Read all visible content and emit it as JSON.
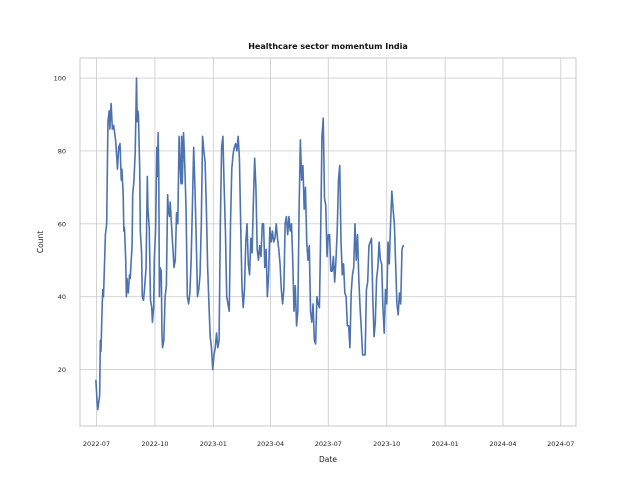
{
  "chart_data": {
    "type": "line",
    "title": "Healthcare sector momentum India",
    "xlabel": "Date",
    "ylabel": "Count",
    "xlim": [
      "2022-06-05",
      "2024-07-25"
    ],
    "ylim": [
      4.5,
      105.5
    ],
    "grid": true,
    "legend": "none",
    "x_ticks": [
      {
        "value": "2022-07-01",
        "label": "2022-07"
      },
      {
        "value": "2022-10-01",
        "label": "2022-10"
      },
      {
        "value": "2023-01-01",
        "label": "2023-01"
      },
      {
        "value": "2023-04-01",
        "label": "2023-04"
      },
      {
        "value": "2023-07-01",
        "label": "2023-07"
      },
      {
        "value": "2023-10-01",
        "label": "2023-10"
      },
      {
        "value": "2024-01-01",
        "label": "2024-01"
      },
      {
        "value": "2024-04-01",
        "label": "2024-04"
      },
      {
        "value": "2024-07-01",
        "label": "2024-07"
      }
    ],
    "y_ticks": [
      {
        "value": 20,
        "label": "20"
      },
      {
        "value": 40,
        "label": "40"
      },
      {
        "value": 60,
        "label": "60"
      },
      {
        "value": 80,
        "label": "80"
      },
      {
        "value": 100,
        "label": "100"
      }
    ],
    "series": [
      {
        "color": "#4c72b0",
        "points": [
          [
            "2022-06-30",
            17
          ],
          [
            "2022-07-02",
            11
          ],
          [
            "2022-07-03",
            9
          ],
          [
            "2022-07-06",
            13
          ],
          [
            "2022-07-07",
            28
          ],
          [
            "2022-07-08",
            25
          ],
          [
            "2022-07-10",
            38
          ],
          [
            "2022-07-11",
            42
          ],
          [
            "2022-07-12",
            40
          ],
          [
            "2022-07-15",
            57
          ],
          [
            "2022-07-17",
            60
          ],
          [
            "2022-07-19",
            88
          ],
          [
            "2022-07-21",
            91
          ],
          [
            "2022-07-22",
            86
          ],
          [
            "2022-07-24",
            93
          ],
          [
            "2022-07-26",
            86
          ],
          [
            "2022-07-28",
            87
          ],
          [
            "2022-07-31",
            83
          ],
          [
            "2022-08-02",
            78
          ],
          [
            "2022-08-03",
            75
          ],
          [
            "2022-08-05",
            81
          ],
          [
            "2022-08-07",
            82
          ],
          [
            "2022-08-09",
            72
          ],
          [
            "2022-08-10",
            75
          ],
          [
            "2022-08-12",
            68
          ],
          [
            "2022-08-13",
            58
          ],
          [
            "2022-08-14",
            59
          ],
          [
            "2022-08-16",
            50
          ],
          [
            "2022-08-17",
            40
          ],
          [
            "2022-08-18",
            45
          ],
          [
            "2022-08-20",
            41
          ],
          [
            "2022-08-22",
            46
          ],
          [
            "2022-08-23",
            45
          ],
          [
            "2022-08-26",
            54
          ],
          [
            "2022-08-27",
            68
          ],
          [
            "2022-08-29",
            72
          ],
          [
            "2022-08-31",
            80
          ],
          [
            "2022-09-02",
            100
          ],
          [
            "2022-09-03",
            88
          ],
          [
            "2022-09-04",
            91
          ],
          [
            "2022-09-05",
            90
          ],
          [
            "2022-09-07",
            75
          ],
          [
            "2022-09-08",
            58
          ],
          [
            "2022-09-10",
            52
          ],
          [
            "2022-09-11",
            40
          ],
          [
            "2022-09-13",
            39
          ],
          [
            "2022-09-15",
            43
          ],
          [
            "2022-09-17",
            48
          ],
          [
            "2022-09-19",
            73
          ],
          [
            "2022-09-20",
            64
          ],
          [
            "2022-09-22",
            59
          ],
          [
            "2022-09-24",
            39
          ],
          [
            "2022-09-26",
            37
          ],
          [
            "2022-09-27",
            33
          ],
          [
            "2022-09-29",
            37
          ],
          [
            "2022-09-30",
            50
          ],
          [
            "2022-10-02",
            58
          ],
          [
            "2022-10-04",
            81
          ],
          [
            "2022-10-05",
            73
          ],
          [
            "2022-10-06",
            85
          ],
          [
            "2022-10-07",
            75
          ],
          [
            "2022-10-08",
            40
          ],
          [
            "2022-10-09",
            48
          ],
          [
            "2022-10-11",
            47
          ],
          [
            "2022-10-12",
            30
          ],
          [
            "2022-10-13",
            26
          ],
          [
            "2022-10-15",
            28
          ],
          [
            "2022-10-17",
            40
          ],
          [
            "2022-10-19",
            43
          ],
          [
            "2022-10-21",
            68
          ],
          [
            "2022-10-22",
            64
          ],
          [
            "2022-10-24",
            62
          ],
          [
            "2022-10-25",
            66
          ],
          [
            "2022-10-27",
            60
          ],
          [
            "2022-10-29",
            54
          ],
          [
            "2022-10-31",
            48
          ],
          [
            "2022-11-02",
            50
          ],
          [
            "2022-11-04",
            63
          ],
          [
            "2022-11-06",
            60
          ],
          [
            "2022-11-08",
            84
          ],
          [
            "2022-11-09",
            78
          ],
          [
            "2022-11-11",
            71
          ],
          [
            "2022-11-12",
            84
          ],
          [
            "2022-11-13",
            71
          ],
          [
            "2022-11-15",
            85
          ],
          [
            "2022-11-17",
            76
          ],
          [
            "2022-11-19",
            64
          ],
          [
            "2022-11-21",
            40
          ],
          [
            "2022-11-23",
            38
          ],
          [
            "2022-11-25",
            41
          ],
          [
            "2022-11-27",
            50
          ],
          [
            "2022-11-29",
            65
          ],
          [
            "2022-12-01",
            81
          ],
          [
            "2022-12-03",
            70
          ],
          [
            "2022-12-05",
            56
          ],
          [
            "2022-12-07",
            40
          ],
          [
            "2022-12-09",
            42
          ],
          [
            "2022-12-11",
            46
          ],
          [
            "2022-12-13",
            60
          ],
          [
            "2022-12-15",
            84
          ],
          [
            "2022-12-17",
            80
          ],
          [
            "2022-12-19",
            77
          ],
          [
            "2022-12-21",
            64
          ],
          [
            "2022-12-23",
            48
          ],
          [
            "2022-12-25",
            38
          ],
          [
            "2022-12-27",
            29
          ],
          [
            "2022-12-29",
            26
          ],
          [
            "2022-12-31",
            20
          ],
          [
            "2023-01-02",
            24
          ],
          [
            "2023-01-04",
            26
          ],
          [
            "2023-01-06",
            30
          ],
          [
            "2023-01-08",
            26
          ],
          [
            "2023-01-10",
            28
          ],
          [
            "2023-01-12",
            60
          ],
          [
            "2023-01-14",
            81
          ],
          [
            "2023-01-16",
            84
          ],
          [
            "2023-01-18",
            70
          ],
          [
            "2023-01-20",
            58
          ],
          [
            "2023-01-22",
            40
          ],
          [
            "2023-01-24",
            38
          ],
          [
            "2023-01-26",
            36
          ],
          [
            "2023-01-28",
            60
          ],
          [
            "2023-01-30",
            75
          ],
          [
            "2023-02-01",
            79
          ],
          [
            "2023-02-03",
            81
          ],
          [
            "2023-02-05",
            82
          ],
          [
            "2023-02-07",
            80
          ],
          [
            "2023-02-09",
            84
          ],
          [
            "2023-02-11",
            78
          ],
          [
            "2023-02-13",
            60
          ],
          [
            "2023-02-15",
            43
          ],
          [
            "2023-02-17",
            37
          ],
          [
            "2023-02-19",
            42
          ],
          [
            "2023-02-21",
            55
          ],
          [
            "2023-02-23",
            60
          ],
          [
            "2023-02-25",
            49
          ],
          [
            "2023-02-27",
            46
          ],
          [
            "2023-03-01",
            56
          ],
          [
            "2023-03-03",
            52
          ],
          [
            "2023-03-05",
            66
          ],
          [
            "2023-03-07",
            78
          ],
          [
            "2023-03-09",
            70
          ],
          [
            "2023-03-11",
            53
          ],
          [
            "2023-03-13",
            50
          ],
          [
            "2023-03-15",
            54
          ],
          [
            "2023-03-17",
            51
          ],
          [
            "2023-03-19",
            60
          ],
          [
            "2023-03-21",
            60
          ],
          [
            "2023-03-23",
            48
          ],
          [
            "2023-03-25",
            53
          ],
          [
            "2023-03-27",
            40
          ],
          [
            "2023-03-29",
            46
          ],
          [
            "2023-03-31",
            59
          ],
          [
            "2023-04-02",
            55
          ],
          [
            "2023-04-04",
            58
          ],
          [
            "2023-04-06",
            55
          ],
          [
            "2023-04-08",
            56
          ],
          [
            "2023-04-10",
            60
          ],
          [
            "2023-04-12",
            56
          ],
          [
            "2023-04-14",
            53
          ],
          [
            "2023-04-16",
            49
          ],
          [
            "2023-04-18",
            42
          ],
          [
            "2023-04-20",
            38
          ],
          [
            "2023-04-22",
            42
          ],
          [
            "2023-04-24",
            60
          ],
          [
            "2023-04-26",
            62
          ],
          [
            "2023-04-28",
            57
          ],
          [
            "2023-04-30",
            62
          ],
          [
            "2023-05-02",
            58
          ],
          [
            "2023-05-04",
            60
          ],
          [
            "2023-05-06",
            50
          ],
          [
            "2023-05-08",
            36
          ],
          [
            "2023-05-10",
            43
          ],
          [
            "2023-05-12",
            32
          ],
          [
            "2023-05-14",
            36
          ],
          [
            "2023-05-16",
            64
          ],
          [
            "2023-05-18",
            83
          ],
          [
            "2023-05-20",
            72
          ],
          [
            "2023-05-22",
            76
          ],
          [
            "2023-05-24",
            64
          ],
          [
            "2023-05-26",
            70
          ],
          [
            "2023-05-28",
            55
          ],
          [
            "2023-05-30",
            50
          ],
          [
            "2023-06-01",
            54
          ],
          [
            "2023-06-03",
            36
          ],
          [
            "2023-06-05",
            33
          ],
          [
            "2023-06-07",
            38
          ],
          [
            "2023-06-09",
            28
          ],
          [
            "2023-06-11",
            27
          ],
          [
            "2023-06-13",
            40
          ],
          [
            "2023-06-15",
            38
          ],
          [
            "2023-06-17",
            37
          ],
          [
            "2023-06-19",
            58
          ],
          [
            "2023-06-21",
            84
          ],
          [
            "2023-06-23",
            89
          ],
          [
            "2023-06-25",
            67
          ],
          [
            "2023-06-27",
            65
          ],
          [
            "2023-06-29",
            51
          ],
          [
            "2023-07-01",
            57
          ],
          [
            "2023-07-03",
            57
          ],
          [
            "2023-07-05",
            47
          ],
          [
            "2023-07-07",
            47
          ],
          [
            "2023-07-09",
            51
          ],
          [
            "2023-07-11",
            44
          ],
          [
            "2023-07-13",
            50
          ],
          [
            "2023-07-15",
            58
          ],
          [
            "2023-07-17",
            72
          ],
          [
            "2023-07-19",
            76
          ],
          [
            "2023-07-21",
            55
          ],
          [
            "2023-07-23",
            46
          ],
          [
            "2023-07-25",
            49
          ],
          [
            "2023-07-27",
            41
          ],
          [
            "2023-07-29",
            40
          ],
          [
            "2023-07-31",
            32
          ],
          [
            "2023-08-02",
            32
          ],
          [
            "2023-08-04",
            26
          ],
          [
            "2023-08-06",
            41
          ],
          [
            "2023-08-08",
            46
          ],
          [
            "2023-08-10",
            48
          ],
          [
            "2023-08-12",
            60
          ],
          [
            "2023-08-14",
            50
          ],
          [
            "2023-08-16",
            57
          ],
          [
            "2023-08-18",
            45
          ],
          [
            "2023-08-20",
            37
          ],
          [
            "2023-08-22",
            31
          ],
          [
            "2023-08-24",
            24
          ],
          [
            "2023-08-26",
            24
          ],
          [
            "2023-08-28",
            24
          ],
          [
            "2023-08-30",
            42
          ],
          [
            "2023-09-01",
            44
          ],
          [
            "2023-09-03",
            54
          ],
          [
            "2023-09-05",
            55
          ],
          [
            "2023-09-07",
            56
          ],
          [
            "2023-09-09",
            40
          ],
          [
            "2023-09-11",
            29
          ],
          [
            "2023-09-13",
            33
          ],
          [
            "2023-09-15",
            45
          ],
          [
            "2023-09-17",
            48
          ],
          [
            "2023-09-19",
            55
          ],
          [
            "2023-09-21",
            50
          ],
          [
            "2023-09-23",
            49
          ],
          [
            "2023-09-25",
            37
          ],
          [
            "2023-09-27",
            30
          ],
          [
            "2023-09-29",
            42
          ],
          [
            "2023-10-01",
            38
          ],
          [
            "2023-10-03",
            55
          ],
          [
            "2023-10-05",
            49
          ],
          [
            "2023-10-07",
            60
          ],
          [
            "2023-10-09",
            69
          ],
          [
            "2023-10-11",
            64
          ],
          [
            "2023-10-13",
            60
          ],
          [
            "2023-10-15",
            49
          ],
          [
            "2023-10-17",
            38
          ],
          [
            "2023-10-19",
            35
          ],
          [
            "2023-10-21",
            41
          ],
          [
            "2023-10-23",
            38
          ],
          [
            "2023-10-25",
            53
          ],
          [
            "2023-10-27",
            54
          ]
        ]
      }
    ]
  }
}
